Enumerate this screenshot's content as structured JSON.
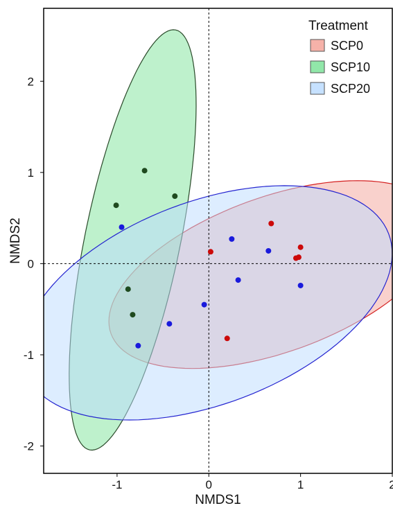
{
  "chart_data": {
    "type": "scatter",
    "xlabel": "NMDS1",
    "ylabel": "NMDS2",
    "xlim": [
      -1.8,
      2.0
    ],
    "ylim": [
      -2.3,
      2.8
    ],
    "xticks": [
      -1,
      0,
      1,
      2
    ],
    "yticks": [
      -2,
      -1,
      0,
      1,
      2
    ],
    "reference_lines": {
      "x": 0,
      "y": 0,
      "style": "dotted"
    },
    "grid": false,
    "legend": {
      "title": "Treatment",
      "position": "top-right"
    },
    "series": [
      {
        "name": "SCP0",
        "point_color": "#cc0a0a",
        "fill_color": "#f4a49a",
        "edge_color": "#d42020",
        "points": [
          [
            0.02,
            0.13
          ],
          [
            0.68,
            0.44
          ],
          [
            1.0,
            0.18
          ],
          [
            0.95,
            0.06
          ],
          [
            0.98,
            0.07
          ],
          [
            0.2,
            -0.82
          ]
        ],
        "ellipse": {
          "center": [
            0.72,
            -0.12
          ],
          "semi_axes": [
            1.9,
            0.85
          ],
          "angle_deg": 20
        }
      },
      {
        "name": "SCP10",
        "point_color": "#1f4a1f",
        "fill_color": "#7ee39a",
        "edge_color": "#2a4a2a",
        "points": [
          [
            -0.7,
            1.02
          ],
          [
            -0.37,
            0.74
          ],
          [
            -1.01,
            0.64
          ],
          [
            -0.88,
            -0.28
          ],
          [
            -0.83,
            -0.56
          ]
        ],
        "ellipse": {
          "center": [
            -0.83,
            0.26
          ],
          "semi_axes": [
            2.35,
            0.52
          ],
          "angle_deg": 78.5
        }
      },
      {
        "name": "SCP20",
        "point_color": "#1a1adc",
        "fill_color": "#bcdcff",
        "edge_color": "#2424d0",
        "points": [
          [
            -0.95,
            0.4
          ],
          [
            0.25,
            0.27
          ],
          [
            0.65,
            0.14
          ],
          [
            0.32,
            -0.18
          ],
          [
            1.0,
            -0.24
          ],
          [
            -0.05,
            -0.45
          ],
          [
            -0.43,
            -0.66
          ],
          [
            -0.77,
            -0.9
          ]
        ],
        "ellipse": {
          "center": [
            -0.02,
            -0.43
          ],
          "semi_axes": [
            2.12,
            1.11
          ],
          "angle_deg": 21
        }
      }
    ]
  }
}
